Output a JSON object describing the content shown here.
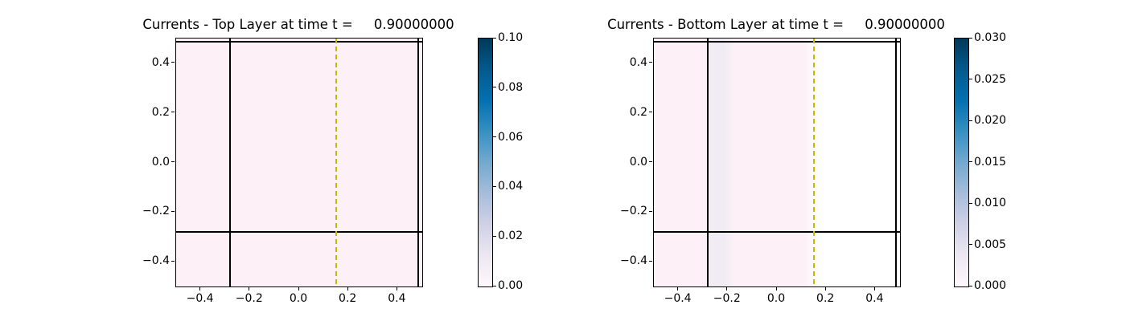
{
  "colors": {
    "dashed_line": "#c8b900",
    "field_pink": "#fdf0f7",
    "band_lavender": "#f1ecf4",
    "masked_white": "#ffffff",
    "grid_line": "#000000",
    "colormap_low": "#fff7fb",
    "colormap_high": "#023858"
  },
  "chart_data": [
    {
      "type": "heatmap",
      "title": "Currents - Top Layer at time t =     0.90000000",
      "xlabel": "",
      "ylabel": "",
      "xlim": [
        -0.5,
        0.5
      ],
      "ylim": [
        -0.5,
        0.5
      ],
      "x_tick_values": [
        -0.4,
        -0.2,
        0.0,
        0.2,
        0.4
      ],
      "x_tick_labels": [
        "−0.4",
        "−0.2",
        "0.0",
        "0.2",
        "0.4"
      ],
      "y_tick_values": [
        0.4,
        0.2,
        0.0,
        -0.2,
        -0.4
      ],
      "y_tick_labels": [
        "0.4",
        "0.2",
        "0.0",
        "−0.2",
        "−0.4"
      ],
      "colormap": "PuBu",
      "colorbar": {
        "vmin": 0.0,
        "vmax": 0.1,
        "tick_values": [
          0.1,
          0.08,
          0.06,
          0.04,
          0.02,
          0.0
        ],
        "tick_labels": [
          "0.10",
          "0.08",
          "0.06",
          "0.04",
          "0.02",
          "0.00"
        ]
      },
      "field_summary": "current speed nearly uniform ~0.003-0.008 (pale pink end of PuBu) over the whole domain",
      "grid_lines": {
        "color": "#000000",
        "vertical_x": [
          -0.28,
          0.48
        ],
        "horizontal_y": [
          0.485,
          -0.28
        ]
      },
      "marker_line": {
        "x": 0.15,
        "style": "dashed",
        "color": "#c8b900"
      }
    },
    {
      "type": "heatmap",
      "title": "Currents - Bottom Layer at time t =     0.90000000",
      "xlabel": "",
      "ylabel": "",
      "xlim": [
        -0.5,
        0.5
      ],
      "ylim": [
        -0.5,
        0.5
      ],
      "x_tick_values": [
        -0.4,
        -0.2,
        0.0,
        0.2,
        0.4
      ],
      "x_tick_labels": [
        "−0.4",
        "−0.2",
        "0.0",
        "0.2",
        "0.4"
      ],
      "y_tick_values": [
        0.4,
        0.2,
        0.0,
        -0.2,
        -0.4
      ],
      "y_tick_labels": [
        "0.4",
        "0.2",
        "0.0",
        "−0.2",
        "−0.4"
      ],
      "colormap": "PuBu",
      "colorbar": {
        "vmin": 0.0,
        "vmax": 0.03,
        "tick_values": [
          0.03,
          0.025,
          0.02,
          0.015,
          0.01,
          0.005,
          0.0
        ],
        "tick_labels": [
          "0.030",
          "0.025",
          "0.020",
          "0.015",
          "0.010",
          "0.005",
          "0.000"
        ]
      },
      "field_summary": "pale pink ~0.001-0.002 for x < 0.15; slightly higher lavender band ~0.003 between x=-0.28 and x=-0.2; zero/white for x > 0.15",
      "regions": [
        {
          "x_range": [
            -0.5,
            -0.28
          ],
          "color": "#fdf0f7"
        },
        {
          "x_range": [
            -0.28,
            -0.2
          ],
          "color": "#f1ecf4"
        },
        {
          "x_range": [
            -0.2,
            0.15
          ],
          "color": "#fdf0f7"
        },
        {
          "x_range": [
            0.15,
            0.5
          ],
          "color": "#ffffff"
        }
      ],
      "grid_lines": {
        "color": "#000000",
        "vertical_x": [
          -0.28,
          0.48
        ],
        "horizontal_y": [
          0.485,
          -0.28
        ]
      },
      "marker_line": {
        "x": 0.15,
        "style": "dashed",
        "color": "#c8b900"
      }
    }
  ]
}
